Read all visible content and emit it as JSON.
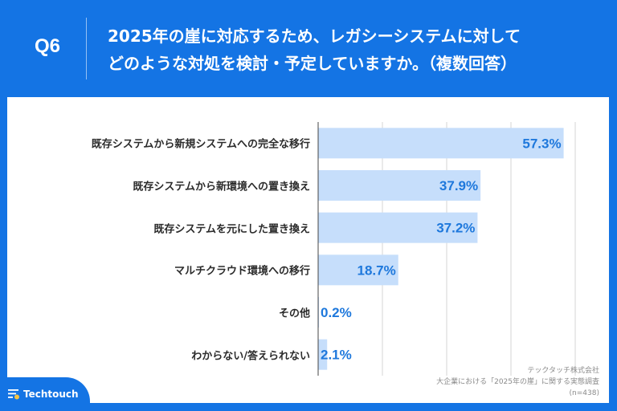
{
  "header": {
    "question_number": "Q6",
    "title_lines": [
      "2025年の崖に対応するため、レガシーシステムに対して",
      "どのような対処を検討・予定していますか。（複数回答）"
    ]
  },
  "chart_data": {
    "type": "bar",
    "orientation": "horizontal",
    "title": "2025年の崖に対応するため、レガシーシステムに対してどのような対処を検討・予定していますか。（複数回答）",
    "categories": [
      "既存システムから新規システムへの完全な移行",
      "既存システムから新環境への置き換え",
      "既存システムを元にした置き換え",
      "マルチクラウド環境への移行",
      "その他",
      "わからない/答えられない"
    ],
    "values": [
      57.3,
      37.9,
      37.2,
      18.7,
      0.2,
      2.1
    ],
    "value_labels": [
      "57.3%",
      "37.9%",
      "37.2%",
      "18.7%",
      "0.2%",
      "2.1%"
    ],
    "unit": "%",
    "xlabel": "",
    "ylabel": "",
    "xlim": [
      0,
      60
    ],
    "gridlines": [
      15,
      30,
      45,
      60
    ],
    "grid": true,
    "tick_labels_visible": false,
    "bar_color": "#C6DEFB",
    "label_color": "#1E78DC"
  },
  "source": {
    "company": "テックタッチ株式会社",
    "survey": "大企業における「2025年の崖」に関する実態調査",
    "sample": "(n=438)"
  },
  "footer": {
    "brand": "Techtouch",
    "brand_accent_color": "#F5C342"
  },
  "colors": {
    "brand_blue": "#1474E4"
  }
}
